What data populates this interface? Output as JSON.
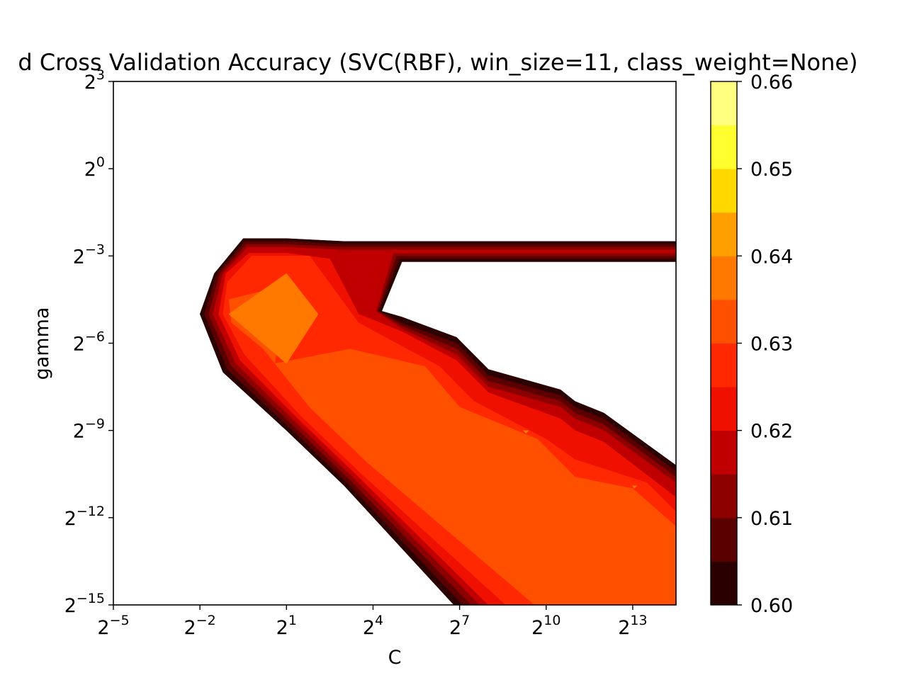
{
  "chart_data": {
    "type": "contourf",
    "title": "d Cross Validation Accuracy (SVC(RBF), win_size=11, class_weight=None)",
    "xlabel": "C",
    "ylabel": "gamma",
    "x_scale": "log2",
    "y_scale": "log2",
    "x_range_exp": [
      -5,
      14.5
    ],
    "y_range_exp": [
      -15,
      3
    ],
    "x_ticks": [
      {
        "exp": -5,
        "base": "2",
        "sup": "−5"
      },
      {
        "exp": -2,
        "base": "2",
        "sup": "−2"
      },
      {
        "exp": 1,
        "base": "2",
        "sup": "1"
      },
      {
        "exp": 4,
        "base": "2",
        "sup": "4"
      },
      {
        "exp": 7,
        "base": "2",
        "sup": "7"
      },
      {
        "exp": 10,
        "base": "2",
        "sup": "10"
      },
      {
        "exp": 13,
        "base": "2",
        "sup": "13"
      }
    ],
    "y_ticks": [
      {
        "exp": 3,
        "base": "2",
        "sup": "3"
      },
      {
        "exp": 0,
        "base": "2",
        "sup": "0"
      },
      {
        "exp": -3,
        "base": "2",
        "sup": "−3"
      },
      {
        "exp": -6,
        "base": "2",
        "sup": "−6"
      },
      {
        "exp": -9,
        "base": "2",
        "sup": "−9"
      },
      {
        "exp": -12,
        "base": "2",
        "sup": "−12"
      },
      {
        "exp": -15,
        "base": "2",
        "sup": "−15"
      }
    ],
    "colorbar": {
      "levels": [
        0.6,
        0.605,
        0.61,
        0.615,
        0.62,
        0.625,
        0.63,
        0.635,
        0.64,
        0.645,
        0.65,
        0.655,
        0.66
      ],
      "colors": [
        "#2a0000",
        "#5a0000",
        "#8c0000",
        "#c00000",
        "#f01000",
        "#ff2800",
        "#ff5000",
        "#ff7800",
        "#ffa000",
        "#ffd800",
        "#ffff30",
        "#ffff80",
        "#ffffe0"
      ],
      "tick_labels": [
        "0.60",
        "0.61",
        "0.62",
        "0.63",
        "0.64",
        "0.65",
        "0.66"
      ],
      "tick_values": [
        0.6,
        0.61,
        0.62,
        0.63,
        0.64,
        0.65,
        0.66
      ]
    },
    "regions": [
      {
        "level": 0.6,
        "points": [
          [
            -1.5,
            -3.6
          ],
          [
            -2.0,
            -5.0
          ],
          [
            -1.2,
            -7.0
          ],
          [
            1.0,
            -9.0
          ],
          [
            3.0,
            -10.9
          ],
          [
            6.8,
            -15
          ],
          [
            14.5,
            -15
          ],
          [
            14.5,
            -10.2
          ],
          [
            12.0,
            -8.4
          ],
          [
            11.0,
            -8.0
          ],
          [
            10.5,
            -7.6
          ],
          [
            8.0,
            -6.9
          ],
          [
            6.9,
            -5.8
          ],
          [
            5.0,
            -5.1
          ],
          [
            4.3,
            -4.9
          ],
          [
            5.0,
            -3.2
          ],
          [
            14.5,
            -3.2
          ],
          [
            14.5,
            -2.5
          ],
          [
            3.0,
            -2.5
          ],
          [
            1.0,
            -2.4
          ],
          [
            -0.5,
            -2.4
          ]
        ]
      },
      {
        "level": 0.605,
        "points": [
          [
            -1.4,
            -3.6
          ],
          [
            -1.85,
            -5.0
          ],
          [
            -1.05,
            -6.9
          ],
          [
            1.1,
            -8.9
          ],
          [
            3.1,
            -10.8
          ],
          [
            7.1,
            -15
          ],
          [
            14.5,
            -15
          ],
          [
            14.5,
            -10.4
          ],
          [
            12.0,
            -8.6
          ],
          [
            11.0,
            -8.2
          ],
          [
            10.5,
            -7.8
          ],
          [
            8.0,
            -7.1
          ],
          [
            6.9,
            -6.0
          ],
          [
            5.0,
            -5.3
          ],
          [
            4.2,
            -4.9
          ],
          [
            4.9,
            -3.1
          ],
          [
            14.5,
            -3.1
          ],
          [
            14.5,
            -2.6
          ],
          [
            3.0,
            -2.6
          ],
          [
            1.0,
            -2.5
          ],
          [
            -0.45,
            -2.5
          ]
        ]
      },
      {
        "level": 0.61,
        "points": [
          [
            -1.3,
            -3.6
          ],
          [
            -1.7,
            -5.0
          ],
          [
            -0.9,
            -6.8
          ],
          [
            1.2,
            -8.8
          ],
          [
            3.2,
            -10.7
          ],
          [
            7.4,
            -15
          ],
          [
            14.5,
            -15
          ],
          [
            14.5,
            -10.6
          ],
          [
            12.0,
            -8.8
          ],
          [
            11.0,
            -8.4
          ],
          [
            10.5,
            -8.0
          ],
          [
            8.0,
            -7.3
          ],
          [
            6.9,
            -6.2
          ],
          [
            5.0,
            -5.4
          ],
          [
            4.15,
            -4.9
          ],
          [
            4.8,
            -3.0
          ],
          [
            14.5,
            -3.0
          ],
          [
            14.5,
            -2.7
          ],
          [
            3.0,
            -2.7
          ],
          [
            1.0,
            -2.6
          ],
          [
            -0.4,
            -2.6
          ]
        ]
      },
      {
        "level": 0.615,
        "points": [
          [
            -1.2,
            -3.6
          ],
          [
            -1.55,
            -5.0
          ],
          [
            -0.75,
            -6.7
          ],
          [
            1.3,
            -8.7
          ],
          [
            3.3,
            -10.6
          ],
          [
            7.7,
            -15
          ],
          [
            14.5,
            -15
          ],
          [
            14.5,
            -10.8
          ],
          [
            12.0,
            -9.0
          ],
          [
            11.0,
            -8.6
          ],
          [
            10.5,
            -8.2
          ],
          [
            8.0,
            -7.5
          ],
          [
            6.9,
            -6.4
          ],
          [
            5.0,
            -5.5
          ],
          [
            4.1,
            -4.9
          ],
          [
            4.7,
            -2.9
          ],
          [
            14.5,
            -2.9
          ],
          [
            14.5,
            -2.8
          ],
          [
            3.0,
            -2.8
          ],
          [
            1.0,
            -2.7
          ],
          [
            -0.35,
            -2.7
          ]
        ]
      },
      {
        "level": 0.62,
        "points": [
          [
            -1.1,
            -3.6
          ],
          [
            -1.35,
            -5.0
          ],
          [
            -0.6,
            -6.6
          ],
          [
            1.4,
            -8.6
          ],
          [
            3.4,
            -10.5
          ],
          [
            8.0,
            -15
          ],
          [
            14.5,
            -15
          ],
          [
            14.5,
            -11.3
          ],
          [
            12.0,
            -9.4
          ],
          [
            11.0,
            -9.0
          ],
          [
            10.5,
            -8.6
          ],
          [
            8.0,
            -7.7
          ],
          [
            6.9,
            -6.6
          ],
          [
            5.0,
            -5.6
          ],
          [
            3.5,
            -5.0
          ],
          [
            2.5,
            -3.1
          ],
          [
            1.0,
            -2.9
          ],
          [
            -0.3,
            -2.9
          ]
        ]
      },
      {
        "level": 0.625,
        "points": [
          [
            -1.05,
            -3.9
          ],
          [
            -1.2,
            -5.0
          ],
          [
            -0.45,
            -6.4
          ],
          [
            1.5,
            -8.5
          ],
          [
            3.5,
            -10.4
          ],
          [
            8.6,
            -15
          ],
          [
            14.5,
            -15
          ],
          [
            14.5,
            -11.8
          ],
          [
            13.5,
            -10.8
          ],
          [
            11.0,
            -10.0
          ],
          [
            10.0,
            -9.3
          ],
          [
            7.5,
            -8.0
          ],
          [
            6.3,
            -6.8
          ],
          [
            3.5,
            -5.3
          ],
          [
            1.8,
            -3.0
          ],
          [
            -0.2,
            -3.0
          ]
        ]
      },
      {
        "level": 0.63,
        "points": [
          [
            -1.0,
            -4.5
          ],
          [
            -0.9,
            -5.3
          ],
          [
            0.2,
            -6.2
          ],
          [
            1.8,
            -8.2
          ],
          [
            3.8,
            -10.1
          ],
          [
            9.6,
            -15
          ],
          [
            14.5,
            -15
          ],
          [
            14.5,
            -12.3
          ],
          [
            13.0,
            -11.0
          ],
          [
            11.0,
            -10.6
          ],
          [
            9.7,
            -9.3
          ],
          [
            7.0,
            -8.2
          ],
          [
            5.8,
            -6.8
          ],
          [
            3.2,
            -6.2
          ],
          [
            0.6,
            -6.7
          ],
          [
            1.0,
            -4.0
          ]
        ]
      },
      {
        "level": 0.635,
        "points": [
          [
            -1.0,
            -5.0
          ],
          [
            1.0,
            -3.6
          ],
          [
            2.1,
            -5.0
          ],
          [
            1.0,
            -6.7
          ]
        ]
      },
      {
        "level": 0.635,
        "points": [
          [
            9.2,
            -9.0
          ],
          [
            9.4,
            -9.0
          ],
          [
            9.3,
            -9.1
          ]
        ]
      },
      {
        "level": 0.635,
        "points": [
          [
            13.0,
            -10.9
          ],
          [
            13.15,
            -10.9
          ],
          [
            13.05,
            -11.0
          ]
        ]
      }
    ]
  }
}
